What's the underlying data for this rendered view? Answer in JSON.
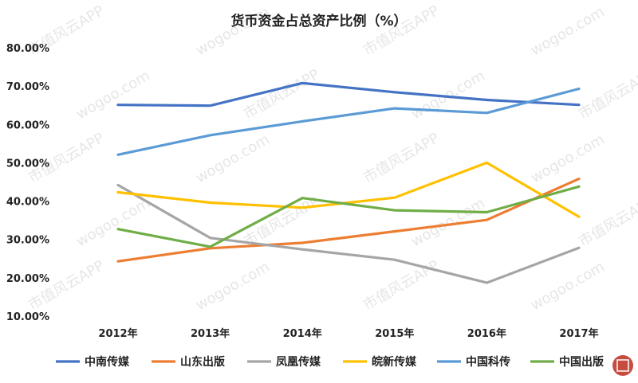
{
  "chart_data": {
    "type": "line",
    "title": "货币资金占总资产比例（%）",
    "xlabel": "",
    "ylabel": "",
    "categories": [
      "2012年",
      "2013年",
      "2014年",
      "2015年",
      "2016年",
      "2017年"
    ],
    "ylim": [
      10,
      80
    ],
    "yticks": [
      10,
      20,
      30,
      40,
      50,
      60,
      70,
      80
    ],
    "ytick_labels": [
      "10.00%",
      "20.00%",
      "30.00%",
      "40.00%",
      "50.00%",
      "60.00%",
      "70.00%",
      "80.00%"
    ],
    "grid": false,
    "legend_position": "bottom",
    "series": [
      {
        "name": "中南传媒",
        "color": "#4472c4",
        "values": [
          65.1,
          64.9,
          70.8,
          68.4,
          66.4,
          65.1
        ]
      },
      {
        "name": "山东出版",
        "color": "#ed7d31",
        "values": [
          24.3,
          27.7,
          29.1,
          32.1,
          35.1,
          45.8
        ]
      },
      {
        "name": "凤凰传媒",
        "color": "#a5a5a5",
        "values": [
          44.2,
          30.4,
          27.4,
          24.7,
          18.7,
          27.8
        ]
      },
      {
        "name": "皖新传媒",
        "color": "#ffc000",
        "values": [
          42.3,
          39.6,
          38.3,
          40.9,
          50.0,
          35.9
        ]
      },
      {
        "name": "中国科传",
        "color": "#5b9bd5",
        "values": [
          52.1,
          57.2,
          60.8,
          64.2,
          63.0,
          69.3
        ]
      },
      {
        "name": "中国出版",
        "color": "#70ad47",
        "values": [
          32.7,
          28.1,
          40.8,
          37.6,
          37.1,
          43.8
        ]
      }
    ]
  },
  "watermark": {
    "text": "市值风云APP",
    "domain": "wogoo.com"
  }
}
